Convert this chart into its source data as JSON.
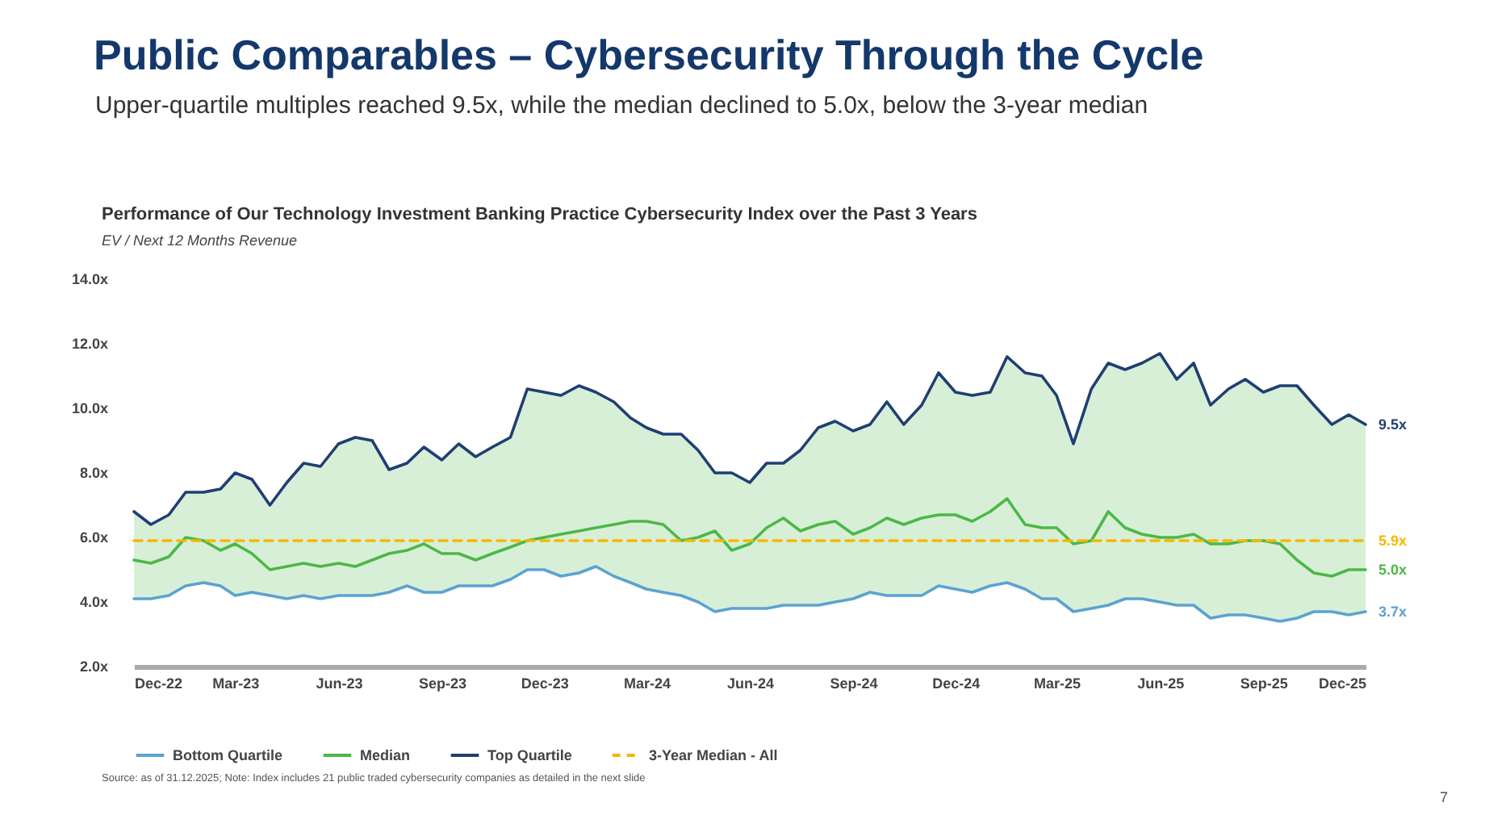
{
  "chart_data": {
    "type": "line",
    "title": "Public Comparables – Cybersecurity Through the Cycle",
    "subtitle": "Upper-quartile multiples reached 9.5x, while the median declined to 5.0x, below the 3-year median",
    "ylabel": "EV / Next 12 Months Revenue",
    "annotations": [
      "Performance of Our Technology Investment Banking Practice Cybersecurity Index over the Past 3 Years",
      "Source: as of 31.12.2025; Note: Index includes 21 public traded cybersecurity companies as detailed in the next slide",
      "7"
    ],
    "x": [
      "2022-12-01",
      "2022-12-16",
      "2023-01-01",
      "2023-01-16",
      "2023-02-01",
      "2023-02-16",
      "2023-03-01",
      "2023-03-16",
      "2023-04-01",
      "2023-04-16",
      "2023-05-01",
      "2023-05-16",
      "2023-06-01",
      "2023-06-16",
      "2023-07-01",
      "2023-07-16",
      "2023-08-01",
      "2023-08-16",
      "2023-09-01",
      "2023-09-16",
      "2023-10-01",
      "2023-10-16",
      "2023-11-01",
      "2023-11-16",
      "2023-12-01",
      "2023-12-16",
      "2024-01-01",
      "2024-01-16",
      "2024-02-01",
      "2024-02-16",
      "2024-03-01",
      "2024-03-16",
      "2024-04-01",
      "2024-04-16",
      "2024-05-01",
      "2024-05-16",
      "2024-06-01",
      "2024-06-16",
      "2024-07-01",
      "2024-07-16",
      "2024-08-01",
      "2024-08-16",
      "2024-09-01",
      "2024-09-16",
      "2024-10-01",
      "2024-10-16",
      "2024-11-01",
      "2024-11-16",
      "2024-12-01",
      "2024-12-16",
      "2025-01-01",
      "2025-01-16",
      "2025-02-01",
      "2025-02-16",
      "2025-03-01",
      "2025-03-16",
      "2025-04-01",
      "2025-04-16",
      "2025-05-01",
      "2025-05-16",
      "2025-06-01",
      "2025-06-16",
      "2025-07-01",
      "2025-07-16",
      "2025-08-01",
      "2025-08-16",
      "2025-09-01",
      "2025-09-16",
      "2025-10-01",
      "2025-10-16",
      "2025-11-01",
      "2025-11-16",
      "2025-12-01"
    ],
    "series": [
      {
        "name": "Bottom Quartile",
        "color": "#5ba3d0",
        "values": [
          4.1,
          4.1,
          4.2,
          4.5,
          4.6,
          4.5,
          4.2,
          4.3,
          4.2,
          4.1,
          4.2,
          4.1,
          4.2,
          4.2,
          4.2,
          4.3,
          4.5,
          4.3,
          4.3,
          4.5,
          4.5,
          4.5,
          4.7,
          5.0,
          5.0,
          4.8,
          4.9,
          5.1,
          4.8,
          4.6,
          4.4,
          4.3,
          4.2,
          4.0,
          3.7,
          3.8,
          3.8,
          3.8,
          3.9,
          3.9,
          3.9,
          4.0,
          4.1,
          4.3,
          4.2,
          4.2,
          4.2,
          4.5,
          4.4,
          4.3,
          4.5,
          4.6,
          4.4,
          4.1,
          4.1,
          3.7,
          3.8,
          3.9,
          4.1,
          4.1,
          4.0,
          3.9,
          3.9,
          3.5,
          3.6,
          3.6,
          3.5,
          3.4,
          3.5,
          3.7,
          3.7,
          3.6,
          3.7
        ],
        "value_labels": [
          null,
          null,
          null,
          null,
          null,
          null,
          null,
          null,
          null,
          null,
          null,
          null,
          null,
          null,
          null,
          null,
          null,
          null,
          null,
          null,
          null,
          null,
          null,
          null,
          null,
          null,
          null,
          null,
          null,
          null,
          null,
          null,
          null,
          null,
          null,
          null,
          null,
          null,
          null,
          null,
          null,
          null,
          null,
          null,
          null,
          null,
          null,
          null,
          null,
          null,
          null,
          null,
          null,
          null,
          null,
          null,
          null,
          null,
          null,
          null,
          null,
          null,
          null,
          null,
          null,
          null,
          null,
          null,
          null,
          null,
          null,
          null,
          "3.7x"
        ]
      },
      {
        "name": "Median",
        "color": "#4cb848",
        "values": [
          5.3,
          5.2,
          5.4,
          6.0,
          5.9,
          5.6,
          5.8,
          5.5,
          5.0,
          5.1,
          5.2,
          5.1,
          5.2,
          5.1,
          5.3,
          5.5,
          5.6,
          5.8,
          5.5,
          5.5,
          5.3,
          5.5,
          5.7,
          5.9,
          6.0,
          6.1,
          6.2,
          6.3,
          6.4,
          6.5,
          6.5,
          6.4,
          5.9,
          6.0,
          6.2,
          5.6,
          5.8,
          6.3,
          6.6,
          6.2,
          6.4,
          6.5,
          6.1,
          6.3,
          6.6,
          6.4,
          6.6,
          6.7,
          6.7,
          6.5,
          6.8,
          7.2,
          6.4,
          6.3,
          6.3,
          5.8,
          5.9,
          6.8,
          6.3,
          6.1,
          6.0,
          6.0,
          6.1,
          5.8,
          5.8,
          5.9,
          5.9,
          5.8,
          5.3,
          4.9,
          4.8,
          5.0,
          5.0
        ],
        "lower": [
          4.1,
          4.1,
          4.2,
          4.5,
          4.6,
          4.5,
          4.2,
          4.3,
          4.2,
          4.1,
          4.2,
          4.1,
          4.2,
          4.2,
          4.2,
          4.3,
          4.5,
          4.3,
          4.3,
          4.5,
          4.5,
          4.5,
          4.7,
          5.0,
          5.0,
          4.8,
          4.9,
          5.1,
          4.8,
          4.6,
          4.4,
          4.3,
          4.2,
          4.0,
          3.7,
          3.8,
          3.8,
          3.8,
          3.9,
          3.9,
          3.9,
          4.0,
          4.1,
          4.3,
          4.2,
          4.2,
          4.2,
          4.5,
          4.4,
          4.3,
          4.5,
          4.6,
          4.4,
          4.1,
          4.1,
          3.7,
          3.8,
          3.9,
          4.1,
          4.1,
          4.0,
          3.9,
          3.9,
          3.5,
          3.6,
          3.6,
          3.5,
          3.4,
          3.5,
          3.7,
          3.7,
          3.6,
          3.7
        ],
        "upper": [
          6.8,
          6.4,
          6.7,
          7.4,
          7.4,
          7.5,
          8.0,
          7.8,
          7.0,
          7.7,
          8.3,
          8.2,
          8.9,
          9.1,
          9.0,
          8.1,
          8.3,
          8.8,
          8.4,
          8.9,
          8.5,
          8.8,
          9.1,
          10.6,
          10.5,
          10.4,
          10.7,
          10.5,
          10.2,
          9.7,
          9.4,
          9.2,
          9.2,
          8.7,
          8.0,
          8.0,
          7.7,
          8.3,
          8.3,
          8.7,
          9.4,
          9.6,
          9.3,
          9.5,
          10.2,
          9.5,
          10.1,
          11.1,
          10.5,
          10.4,
          10.5,
          11.6,
          11.1,
          11.0,
          10.4,
          8.9,
          10.6,
          11.4,
          11.2,
          11.4,
          11.7,
          10.9,
          11.4,
          10.1,
          10.6,
          10.9,
          10.5,
          10.7,
          10.7,
          10.1,
          9.5,
          9.8,
          9.5
        ],
        "value_labels": [
          null,
          null,
          null,
          null,
          null,
          null,
          null,
          null,
          null,
          null,
          null,
          null,
          null,
          null,
          null,
          null,
          null,
          null,
          null,
          null,
          null,
          null,
          null,
          null,
          null,
          null,
          null,
          null,
          null,
          null,
          null,
          null,
          null,
          null,
          null,
          null,
          null,
          null,
          null,
          null,
          null,
          null,
          null,
          null,
          null,
          null,
          null,
          null,
          null,
          null,
          null,
          null,
          null,
          null,
          null,
          null,
          null,
          null,
          null,
          null,
          null,
          null,
          null,
          null,
          null,
          null,
          null,
          null,
          null,
          null,
          null,
          null,
          "5.0x"
        ]
      },
      {
        "name": "Top Quartile",
        "color": "#1f3f73",
        "values": [
          6.8,
          6.4,
          6.7,
          7.4,
          7.4,
          7.5,
          8.0,
          7.8,
          7.0,
          7.7,
          8.3,
          8.2,
          8.9,
          9.1,
          9.0,
          8.1,
          8.3,
          8.8,
          8.4,
          8.9,
          8.5,
          8.8,
          9.1,
          10.6,
          10.5,
          10.4,
          10.7,
          10.5,
          10.2,
          9.7,
          9.4,
          9.2,
          9.2,
          8.7,
          8.0,
          8.0,
          7.7,
          8.3,
          8.3,
          8.7,
          9.4,
          9.6,
          9.3,
          9.5,
          10.2,
          9.5,
          10.1,
          11.1,
          10.5,
          10.4,
          10.5,
          11.6,
          11.1,
          11.0,
          10.4,
          8.9,
          10.6,
          11.4,
          11.2,
          11.4,
          11.7,
          10.9,
          11.4,
          10.1,
          10.6,
          10.9,
          10.5,
          10.7,
          10.7,
          10.1,
          9.5,
          9.8,
          9.5
        ],
        "value_labels": [
          null,
          null,
          null,
          null,
          null,
          null,
          null,
          null,
          null,
          null,
          null,
          null,
          null,
          null,
          null,
          null,
          null,
          null,
          null,
          null,
          null,
          null,
          null,
          null,
          null,
          null,
          null,
          null,
          null,
          null,
          null,
          null,
          null,
          null,
          null,
          null,
          null,
          null,
          null,
          null,
          null,
          null,
          null,
          null,
          null,
          null,
          null,
          null,
          null,
          null,
          null,
          null,
          null,
          null,
          null,
          null,
          null,
          null,
          null,
          null,
          null,
          null,
          null,
          null,
          null,
          null,
          null,
          null,
          null,
          null,
          null,
          null,
          "9.5x"
        ]
      },
      {
        "name": "3-Year Median - All",
        "color": "#f5b800",
        "line_style": "dashed",
        "x": [
          "2022-12-01",
          "2025-12-01"
        ],
        "values": [
          5.9,
          5.9
        ],
        "value_labels": [
          null,
          "5.9x"
        ]
      }
    ],
    "xlim": [
      "2022-12-01",
      "2025-12-01"
    ],
    "xticks": [
      {
        "value": "2022-12-01",
        "label": "Dec-22"
      },
      {
        "value": "2023-03-01",
        "label": "Mar-23"
      },
      {
        "value": "2023-06-01",
        "label": "Jun-23"
      },
      {
        "value": "2023-09-01",
        "label": "Sep-23"
      },
      {
        "value": "2023-12-01",
        "label": "Dec-23"
      },
      {
        "value": "2024-03-01",
        "label": "Mar-24"
      },
      {
        "value": "2024-06-01",
        "label": "Jun-24"
      },
      {
        "value": "2024-09-01",
        "label": "Sep-24"
      },
      {
        "value": "2024-12-01",
        "label": "Dec-24"
      },
      {
        "value": "2025-03-01",
        "label": "Mar-25"
      },
      {
        "value": "2025-06-01",
        "label": "Jun-25"
      },
      {
        "value": "2025-09-01",
        "label": "Sep-25"
      },
      {
        "value": "2025-12-01",
        "label": "Dec-25"
      }
    ],
    "ylim": [
      2,
      14
    ],
    "yticks": [
      {
        "value": 2,
        "label": "2.0x"
      },
      {
        "value": 4,
        "label": "4.0x"
      },
      {
        "value": 6,
        "label": "6.0x"
      },
      {
        "value": 8,
        "label": "8.0x"
      },
      {
        "value": 10,
        "label": "10.0x"
      },
      {
        "value": 12,
        "label": "12.0x"
      },
      {
        "value": 14,
        "label": "14.0x"
      }
    ],
    "grid": false,
    "legend": "bottom",
    "line_style": "solid"
  }
}
